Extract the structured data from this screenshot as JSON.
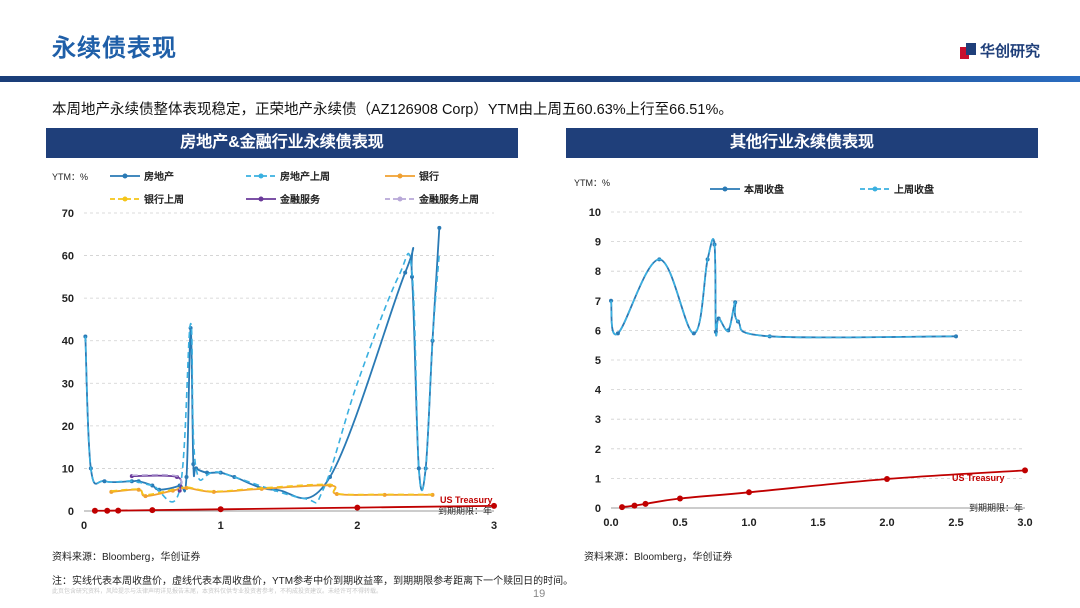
{
  "header": {
    "title": "永续债表现",
    "logo_text": "华创研究",
    "summary": "本周地产永续债整体表现稳定，正荣地产永续债（AZ126908 Corp）YTM由上周五60.63%上行至66.51%。"
  },
  "panels": {
    "left_title": "房地产&金融行业永续债表现",
    "right_title": "其他行业永续债表现"
  },
  "footer": {
    "source_left": "资料来源：Bloomberg，华创证券",
    "source_right": "资料来源：Bloomberg，华创证券",
    "note": "注：实线代表本周收盘价，虚线代表本周收盘价，YTM参考中价到期收益率，到期期限参考距离下一个赎回日的时间。",
    "disclaimer": "此页包含研究资料，风险提示与法律声明详见报告末尾，本资料仅供专业投资者参考，不构成投资建议。未经许可不得转载。",
    "page_number": "19"
  },
  "colors": {
    "brand_blue": "#1f3f7a",
    "title_blue": "#1f5fa8",
    "property": "#2a7ab5",
    "property_last": "#3ab0e0",
    "bank": "#f0a030",
    "bank_last": "#f5c518",
    "finance": "#6a3a9a",
    "finance_last": "#b8a8d8",
    "treasury": "#c00000"
  },
  "chart_data": [
    {
      "type": "line",
      "ylabel": "YTM：%",
      "xlabel": "到期期限：年",
      "xlim": [
        0,
        3
      ],
      "ylim": [
        0,
        70
      ],
      "xticks": [
        0,
        1,
        2,
        3
      ],
      "yticks": [
        0,
        10,
        20,
        30,
        40,
        50,
        60,
        70
      ],
      "grid": true,
      "legend_position": "top",
      "annotation": "US Treasury",
      "series": [
        {
          "name": "房地产",
          "style": "solid",
          "color_key": "property",
          "x": [
            0.01,
            0.05,
            0.15,
            0.35,
            0.4,
            0.5,
            0.55,
            0.7,
            0.75,
            0.78,
            0.8,
            0.82,
            0.9,
            1.0,
            1.1,
            1.4,
            1.8,
            2.35,
            2.4,
            2.45,
            2.5,
            2.55,
            2.6
          ],
          "y": [
            41,
            10,
            7,
            7,
            7,
            6,
            5,
            6,
            8,
            43,
            11,
            10,
            9,
            9,
            8,
            5,
            8,
            56,
            55,
            10,
            10,
            40,
            66.5
          ]
        },
        {
          "name": "房地产上周",
          "style": "dashed",
          "color_key": "property_last",
          "x": [
            0.01,
            0.05,
            0.15,
            0.35,
            0.5,
            0.7,
            0.78,
            0.82,
            1.0,
            1.6,
            1.75,
            2.0,
            2.3,
            2.4,
            2.45,
            2.5,
            2.55,
            2.6
          ],
          "y": [
            41,
            10,
            7,
            7,
            6,
            5,
            44,
            10,
            9,
            3,
            5,
            30,
            55,
            56,
            10,
            10,
            40,
            60.6
          ]
        },
        {
          "name": "银行",
          "style": "solid",
          "color_key": "bank",
          "x": [
            0.2,
            0.4,
            0.45,
            0.65,
            0.75,
            0.95,
            1.3,
            1.8,
            1.85,
            2.2,
            2.55
          ],
          "y": [
            4.5,
            5,
            3.5,
            4.8,
            5.4,
            4.5,
            5.2,
            6,
            4,
            3.8,
            3.8
          ]
        },
        {
          "name": "银行上周",
          "style": "dashed",
          "color_key": "bank_last",
          "x": [
            0.2,
            0.4,
            0.45,
            0.65,
            0.75,
            0.95,
            1.3,
            1.8,
            1.85,
            2.2,
            2.55
          ],
          "y": [
            4.7,
            5.1,
            3.8,
            5,
            5.6,
            4.6,
            5.4,
            6.2,
            4.1,
            3.9,
            3.9
          ]
        },
        {
          "name": "金融服务",
          "style": "solid",
          "color_key": "finance",
          "x": [
            0.35,
            0.68,
            0.7
          ],
          "y": [
            8.2,
            8,
            4.8
          ]
        },
        {
          "name": "金融服务上周",
          "style": "dashed",
          "color_key": "finance_last",
          "x": [
            0.35,
            0.68,
            0.7
          ],
          "y": [
            8.4,
            8.2,
            5
          ]
        },
        {
          "name": "US Treasury",
          "style": "solid",
          "color_key": "treasury",
          "x": [
            0.08,
            0.17,
            0.25,
            0.5,
            1.0,
            2.0,
            3.0
          ],
          "y": [
            0.05,
            0.07,
            0.1,
            0.2,
            0.4,
            0.8,
            1.2
          ]
        }
      ]
    },
    {
      "type": "line",
      "ylabel": "YTM：%",
      "xlabel": "到期期限：年",
      "xlim": [
        0,
        3
      ],
      "ylim": [
        0,
        10
      ],
      "xticks": [
        "0.0",
        "0.5",
        "1.0",
        "1.5",
        "2.0",
        "2.5",
        "3.0"
      ],
      "yticks": [
        0,
        1,
        2,
        3,
        4,
        5,
        6,
        7,
        8,
        9,
        10
      ],
      "grid": true,
      "legend_position": "top",
      "annotation": "US Treasury",
      "series": [
        {
          "name": "本周收盘",
          "style": "solid",
          "color_key": "property",
          "x": [
            0.0,
            0.05,
            0.35,
            0.6,
            0.7,
            0.75,
            0.76,
            0.78,
            0.85,
            0.9,
            0.92,
            1.15,
            2.5
          ],
          "y": [
            7.0,
            5.9,
            8.4,
            5.9,
            8.4,
            8.9,
            5.95,
            6.4,
            6.0,
            6.95,
            6.3,
            5.8,
            5.8
          ]
        },
        {
          "name": "上周收盘",
          "style": "dashed",
          "color_key": "property_last",
          "x": [
            0.0,
            0.05,
            0.35,
            0.6,
            0.7,
            0.75,
            0.76,
            0.78,
            0.85,
            0.9,
            0.92,
            1.15,
            2.5
          ],
          "y": [
            7.0,
            5.9,
            8.4,
            5.9,
            8.4,
            8.9,
            5.95,
            6.4,
            6.0,
            6.95,
            6.3,
            5.8,
            5.8
          ]
        },
        {
          "name": "US Treasury",
          "style": "solid",
          "color_key": "treasury",
          "x": [
            0.08,
            0.17,
            0.25,
            0.5,
            1.0,
            2.0,
            3.0
          ],
          "y": [
            0.03,
            0.08,
            0.14,
            0.32,
            0.53,
            0.98,
            1.27
          ]
        }
      ]
    }
  ]
}
